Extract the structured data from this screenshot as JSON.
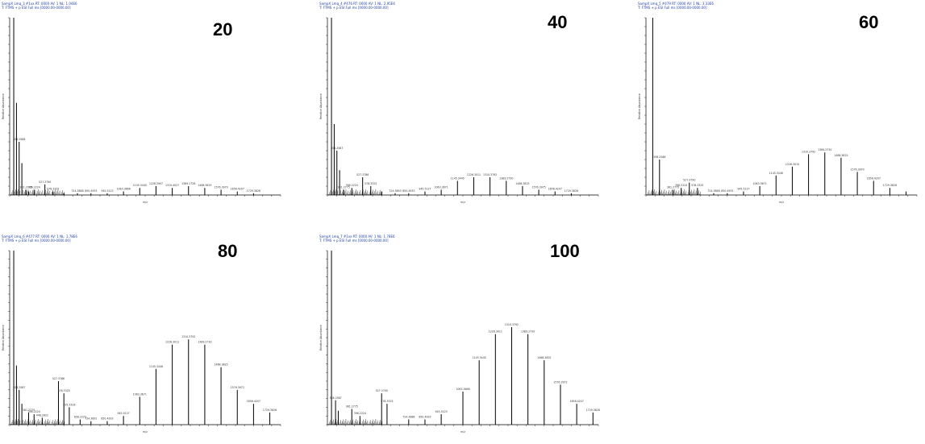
{
  "chart_data": [
    {
      "type": "bar",
      "label": "20",
      "header_line1": "SampX Lmq_3 #1xx RT: 0000 AV: 1 NL: 1.04E6",
      "header_line2": "T: FTMS + p ESI Full ms [0000.00-0000.00]",
      "xlabel": "m/z",
      "ylabel": "Relative Abundance",
      "ylim": [
        0,
        100
      ],
      "peaks": [
        [
          0.015,
          100,
          ""
        ],
        [
          0.025,
          52,
          ""
        ],
        [
          0.035,
          30,
          "358.2588"
        ],
        [
          0.045,
          18,
          ""
        ],
        [
          0.06,
          3,
          "381.2775"
        ],
        [
          0.07,
          2,
          ""
        ],
        [
          0.09,
          3,
          "396.2224"
        ],
        [
          0.13,
          6,
          "527.3790"
        ],
        [
          0.16,
          2,
          "578.3325"
        ],
        [
          0.2,
          1,
          ""
        ],
        [
          0.25,
          1,
          "724.3888"
        ],
        [
          0.3,
          1,
          "850.4933"
        ],
        [
          0.36,
          1,
          "945.5123"
        ],
        [
          0.42,
          2,
          "1063.3666"
        ],
        [
          0.48,
          4,
          "1145.3440"
        ],
        [
          0.54,
          5,
          "1226.2907"
        ],
        [
          0.6,
          4,
          "1310.4027"
        ],
        [
          0.66,
          5,
          "1389.2728"
        ],
        [
          0.72,
          4,
          "1468.3825"
        ],
        [
          0.78,
          3,
          "1576.3970"
        ],
        [
          0.84,
          2,
          "1656.4207"
        ],
        [
          0.9,
          1,
          "1729.3826"
        ]
      ]
    },
    {
      "type": "bar",
      "label": "40",
      "header_line1": "SampX Lmq_4 #476 RT: 0000 AV: 1 NL: 2.95E6",
      "header_line2": "T: FTMS + p ESI Full ms [0000.00-0000.00]",
      "xlabel": "m/z",
      "ylabel": "Relative Abundance",
      "ylim": [
        0,
        100
      ],
      "peaks": [
        [
          0.015,
          100,
          ""
        ],
        [
          0.025,
          40,
          ""
        ],
        [
          0.035,
          25,
          "358.2587"
        ],
        [
          0.045,
          14,
          ""
        ],
        [
          0.06,
          3,
          "381.2775"
        ],
        [
          0.09,
          4,
          "396.2224"
        ],
        [
          0.13,
          10,
          "527.3786"
        ],
        [
          0.16,
          5,
          "578.3325"
        ],
        [
          0.2,
          2,
          ""
        ],
        [
          0.25,
          1,
          "724.3893"
        ],
        [
          0.3,
          1,
          "850.4933"
        ],
        [
          0.36,
          2,
          "945.5127"
        ],
        [
          0.42,
          3,
          "1063.3671"
        ],
        [
          0.48,
          8,
          "1145.3445"
        ],
        [
          0.54,
          10,
          "1226.3011"
        ],
        [
          0.6,
          10,
          "1310.3792"
        ],
        [
          0.66,
          8,
          "1389.2730"
        ],
        [
          0.72,
          5,
          "1468.3825"
        ],
        [
          0.78,
          3,
          "1576.3975"
        ],
        [
          0.84,
          2,
          "1656.4207"
        ],
        [
          0.9,
          1,
          "1729.3826"
        ]
      ]
    },
    {
      "type": "bar",
      "label": "60",
      "header_line1": "SampX Lmq_5 #479 RT: 0000 AV: 1 NL: 3.33E6",
      "header_line2": "T: FTMS + p ESI Full ms [0000.00-0000.00]",
      "xlabel": "m/z",
      "ylabel": "Relative Abundance",
      "ylim": [
        0,
        100
      ],
      "peaks": [
        [
          0.025,
          100,
          ""
        ],
        [
          0.05,
          20,
          "358.2588"
        ],
        [
          0.1,
          3,
          "381.2775"
        ],
        [
          0.13,
          4,
          "396.2224"
        ],
        [
          0.16,
          7,
          "527.3790"
        ],
        [
          0.19,
          4,
          "578.3325"
        ],
        [
          0.25,
          1,
          "724.3888"
        ],
        [
          0.3,
          1,
          "850.4933"
        ],
        [
          0.36,
          2,
          "945.5127"
        ],
        [
          0.42,
          5,
          "1063.3671"
        ],
        [
          0.48,
          11,
          "1145.3446"
        ],
        [
          0.54,
          16,
          "1226.3010"
        ],
        [
          0.6,
          23,
          "1310.3792"
        ],
        [
          0.66,
          24,
          "1389.2730"
        ],
        [
          0.72,
          21,
          "1468.3825"
        ],
        [
          0.78,
          13,
          "1576.3970"
        ],
        [
          0.84,
          8,
          "1656.4207"
        ],
        [
          0.9,
          4,
          "1729.3826"
        ],
        [
          0.96,
          2,
          ""
        ]
      ]
    },
    {
      "type": "bar",
      "label": "80",
      "header_line1": "SampX Lmq_6 #477 RT: 0000 AV: 1 NL: 1.78E6",
      "header_line2": "T: FTMS + p ESI Full ms [0000.00-0000.00]",
      "xlabel": "m/z",
      "ylabel": "Relative Abundance",
      "ylim": [
        0,
        100
      ],
      "peaks": [
        [
          0.015,
          100,
          ""
        ],
        [
          0.025,
          34,
          ""
        ],
        [
          0.035,
          20,
          "358.2587"
        ],
        [
          0.045,
          12,
          ""
        ],
        [
          0.07,
          7,
          "381.2775"
        ],
        [
          0.09,
          6,
          "396.2224"
        ],
        [
          0.12,
          4,
          "448.2822"
        ],
        [
          0.18,
          25,
          "527.3786"
        ],
        [
          0.2,
          18,
          "578.3325"
        ],
        [
          0.22,
          10,
          "595.3326"
        ],
        [
          0.26,
          3,
          "658.2225"
        ],
        [
          0.3,
          2,
          "724.3891"
        ],
        [
          0.36,
          2,
          "850.4933"
        ],
        [
          0.42,
          5,
          "945.5127"
        ],
        [
          0.48,
          16,
          "1063.3671"
        ],
        [
          0.54,
          32,
          "1145.3446"
        ],
        [
          0.6,
          46,
          "1226.3011"
        ],
        [
          0.66,
          49,
          "1310.3792"
        ],
        [
          0.72,
          46,
          "1389.2730"
        ],
        [
          0.78,
          33,
          "1468.3825"
        ],
        [
          0.84,
          20,
          "1576.3972"
        ],
        [
          0.9,
          12,
          "1656.4207"
        ],
        [
          0.96,
          7,
          "1729.3826"
        ]
      ]
    },
    {
      "type": "bar",
      "label": "100",
      "header_line1": "SampX Lmq_7 #1xx RT: 0000 AV: 1 NL: 1.78E6",
      "header_line2": "T: FTMS + p ESI Full ms [0000.00-0000.00]",
      "xlabel": "m/z",
      "ylabel": "Relative Abundance",
      "ylim": [
        0,
        100
      ],
      "peaks": [
        [
          0.015,
          100,
          ""
        ],
        [
          0.03,
          14,
          "358.2587"
        ],
        [
          0.04,
          8,
          ""
        ],
        [
          0.09,
          9,
          "381.2775"
        ],
        [
          0.12,
          5,
          "396.2224"
        ],
        [
          0.2,
          18,
          "527.3790"
        ],
        [
          0.22,
          12,
          "578.3325"
        ],
        [
          0.3,
          3,
          "724.3888"
        ],
        [
          0.36,
          3,
          "850.4933"
        ],
        [
          0.42,
          6,
          "945.5123"
        ],
        [
          0.5,
          19,
          "1063.3666"
        ],
        [
          0.56,
          37,
          "1145.3445"
        ],
        [
          0.62,
          52,
          "1226.3011"
        ],
        [
          0.68,
          56,
          "1310.3792"
        ],
        [
          0.74,
          52,
          "1389.2730"
        ],
        [
          0.8,
          37,
          "1468.3825"
        ],
        [
          0.86,
          23,
          "1576.3972"
        ],
        [
          0.92,
          12,
          "1656.4207"
        ],
        [
          0.98,
          7,
          "1729.3826"
        ]
      ]
    }
  ]
}
